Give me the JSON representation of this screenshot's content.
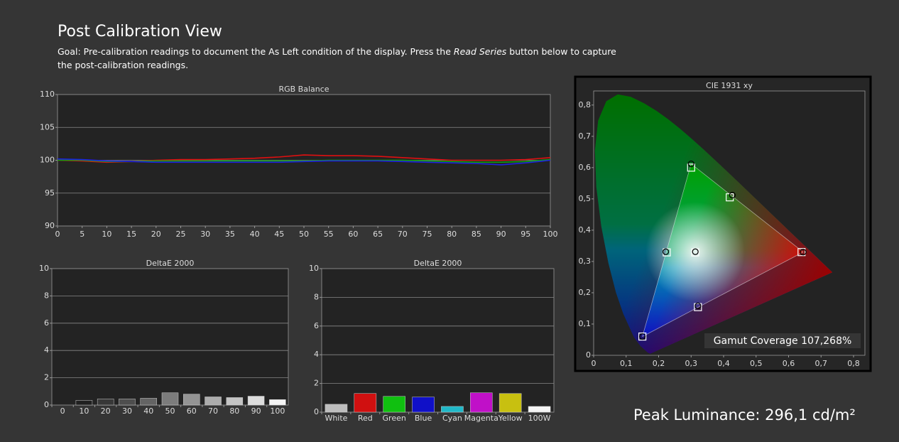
{
  "title": "Post Calibration View",
  "goal": [
    "Goal: Pre-calibration readings to document the As Left condition of the display. Press the ",
    "Read Series",
    " button below to capture",
    "the post-calibration readings."
  ],
  "peak_luminance": "Peak Luminance: 296,1 cd/m²",
  "chart_data": [
    {
      "type": "line",
      "title": "RGB Balance",
      "x": [
        0,
        5,
        10,
        15,
        20,
        25,
        30,
        35,
        40,
        45,
        50,
        55,
        60,
        65,
        70,
        75,
        80,
        85,
        90,
        95,
        100
      ],
      "xlim": [
        0,
        100
      ],
      "xticks": [
        0,
        5,
        10,
        15,
        20,
        25,
        30,
        35,
        40,
        45,
        50,
        55,
        60,
        65,
        70,
        75,
        80,
        85,
        90,
        95,
        100
      ],
      "ylim": [
        90,
        110
      ],
      "yticks": [
        90,
        95,
        100,
        105,
        110
      ],
      "grid": true,
      "series": [
        {
          "color": "#e01010",
          "values": [
            100,
            99.9,
            99.7,
            99.8,
            100,
            100.1,
            100.1,
            100.2,
            100.3,
            100.5,
            100.8,
            100.7,
            100.7,
            100.6,
            100.4,
            100.2,
            100,
            100,
            100,
            100.1,
            100.4
          ]
        },
        {
          "color": "#10a010",
          "values": [
            100,
            100,
            99.8,
            99.8,
            99.9,
            99.9,
            99.9,
            99.9,
            99.9,
            99.9,
            99.9,
            100,
            100,
            100,
            100,
            99.9,
            99.8,
            99.7,
            99.7,
            99.8,
            100.1
          ]
        },
        {
          "color": "#2020e0",
          "values": [
            100.2,
            100.1,
            99.9,
            99.8,
            99.7,
            99.7,
            99.7,
            99.7,
            99.7,
            99.7,
            99.8,
            99.9,
            99.9,
            99.9,
            99.8,
            99.7,
            99.6,
            99.5,
            99.3,
            99.6,
            100
          ]
        }
      ]
    },
    {
      "type": "bar",
      "title": "DeltaE 2000",
      "categories": [
        "0",
        "10",
        "20",
        "30",
        "40",
        "50",
        "60",
        "70",
        "80",
        "90",
        "100"
      ],
      "values": [
        0,
        0.35,
        0.45,
        0.45,
        0.5,
        0.9,
        0.8,
        0.6,
        0.55,
        0.65,
        0.4
      ],
      "colors": [
        "#101010",
        "#202020",
        "#383838",
        "#4e4e4e",
        "#646464",
        "#7c7c7c",
        "#949494",
        "#acacac",
        "#c4c4c4",
        "#dcdcdc",
        "#f4f4f4"
      ],
      "ylim": [
        0,
        10
      ],
      "yticks": [
        0,
        2,
        4,
        6,
        8,
        10
      ],
      "grid": true
    },
    {
      "type": "bar",
      "title": "DeltaE 2000",
      "categories": [
        "White",
        "Red",
        "Green",
        "Blue",
        "Cyan",
        "Magenta",
        "Yellow",
        "100W"
      ],
      "values": [
        0.55,
        1.3,
        1.1,
        1.05,
        0.4,
        1.35,
        1.3,
        0.4
      ],
      "colors": [
        "#bdbdbd",
        "#d01010",
        "#10c010",
        "#1010c8",
        "#20b8c8",
        "#c010c8",
        "#c8c010",
        "#f4f4f4"
      ],
      "ylim": [
        0,
        10
      ],
      "yticks": [
        0,
        2,
        4,
        6,
        8,
        10
      ],
      "grid": true
    },
    {
      "type": "scatter",
      "title": "CIE 1931 xy",
      "xlim": [
        0,
        0.835
      ],
      "ylim": [
        0,
        0.845
      ],
      "xticks": [
        0,
        {
          "value": 0.1,
          "label": "0,1"
        },
        {
          "value": 0.2,
          "label": "0,2"
        },
        {
          "value": 0.3,
          "label": "0,3"
        },
        {
          "value": 0.4,
          "label": "0,4"
        },
        {
          "value": 0.5,
          "label": "0,5"
        },
        {
          "value": 0.6,
          "label": "0,6"
        },
        {
          "value": 0.7,
          "label": "0,7"
        },
        {
          "value": 0.8,
          "label": "0,8"
        }
      ],
      "yticks": [
        0,
        {
          "value": 0.1,
          "label": "0,1"
        },
        {
          "value": 0.2,
          "label": "0,2"
        },
        {
          "value": 0.3,
          "label": "0,3"
        },
        {
          "value": 0.4,
          "label": "0,4"
        },
        {
          "value": 0.5,
          "label": "0,5"
        },
        {
          "value": 0.6,
          "label": "0,6"
        },
        {
          "value": 0.7,
          "label": "0,7"
        },
        {
          "value": 0.8,
          "label": "0,8"
        }
      ],
      "series": [
        {
          "marker": "square",
          "color": "#ffffff",
          "x": [
            0.64,
            0.3,
            0.15,
            0.3127,
            0.225,
            0.321,
            0.419
          ],
          "y": [
            0.33,
            0.6,
            0.06,
            0.329,
            0.329,
            0.154,
            0.505
          ]
        },
        {
          "marker": "circle",
          "color": "#000000",
          "x": [
            0.645,
            0.3,
            0.15,
            0.313,
            0.222,
            0.321,
            0.427
          ],
          "y": [
            0.33,
            0.612,
            0.06,
            0.331,
            0.331,
            0.158,
            0.512
          ]
        }
      ],
      "annotation": "Gamut Coverage 107,268%"
    }
  ]
}
